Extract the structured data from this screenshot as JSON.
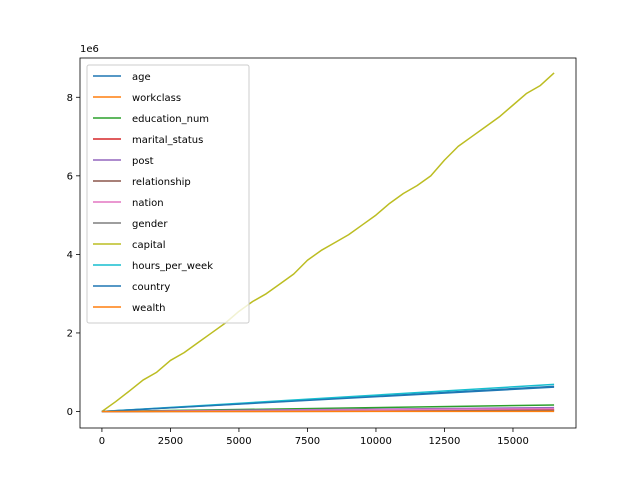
{
  "chart_data": {
    "type": "line",
    "title": "",
    "xlabel": "",
    "ylabel": "",
    "y_offset_label": "1e6",
    "y_scale": 1000000,
    "xlim": [
      -800,
      17300
    ],
    "ylim": [
      -420000,
      9000000
    ],
    "x_ticks": [
      0,
      2500,
      5000,
      7500,
      10000,
      12500,
      15000
    ],
    "x_tick_labels": [
      "0",
      "2500",
      "5000",
      "7500",
      "10000",
      "12500",
      "15000"
    ],
    "y_ticks": [
      0,
      2000000,
      4000000,
      6000000,
      8000000
    ],
    "y_tick_labels": [
      "0",
      "2",
      "4",
      "6",
      "8"
    ],
    "grid": false,
    "legend_position": "upper-left",
    "x_max": 16500,
    "series": [
      {
        "name": "age",
        "color": "#1f77b4",
        "end_value": 640000
      },
      {
        "name": "workclass",
        "color": "#ff7f0e",
        "end_value": 50000
      },
      {
        "name": "education_num",
        "color": "#2ca02c",
        "end_value": 165000
      },
      {
        "name": "marital_status",
        "color": "#d62728",
        "end_value": 40000
      },
      {
        "name": "post",
        "color": "#9467bd",
        "end_value": 100000
      },
      {
        "name": "relationship",
        "color": "#8c564b",
        "end_value": 25000
      },
      {
        "name": "nation",
        "color": "#e377c2",
        "end_value": 70000
      },
      {
        "name": "gender",
        "color": "#7f7f7f",
        "end_value": 11000
      },
      {
        "name": "capital",
        "color": "#bcbd22",
        "points": [
          [
            0,
            0
          ],
          [
            500,
            250000
          ],
          [
            1000,
            520000
          ],
          [
            1500,
            800000
          ],
          [
            2000,
            1000000
          ],
          [
            2500,
            1300000
          ],
          [
            3000,
            1500000
          ],
          [
            3500,
            1750000
          ],
          [
            4000,
            2000000
          ],
          [
            4500,
            2250000
          ],
          [
            5000,
            2550000
          ],
          [
            5500,
            2800000
          ],
          [
            6000,
            3000000
          ],
          [
            6500,
            3250000
          ],
          [
            7000,
            3500000
          ],
          [
            7500,
            3850000
          ],
          [
            8000,
            4100000
          ],
          [
            8500,
            4300000
          ],
          [
            9000,
            4500000
          ],
          [
            9500,
            4750000
          ],
          [
            10000,
            5000000
          ],
          [
            10500,
            5300000
          ],
          [
            11000,
            5550000
          ],
          [
            11500,
            5750000
          ],
          [
            12000,
            6000000
          ],
          [
            12500,
            6400000
          ],
          [
            13000,
            6750000
          ],
          [
            13500,
            7000000
          ],
          [
            14000,
            7250000
          ],
          [
            14500,
            7500000
          ],
          [
            15000,
            7800000
          ],
          [
            15500,
            8100000
          ],
          [
            16000,
            8300000
          ],
          [
            16500,
            8620000
          ]
        ]
      },
      {
        "name": "hours_per_week",
        "color": "#17becf",
        "end_value": 690000
      },
      {
        "name": "country",
        "color": "#1f77b4",
        "end_value": 620000
      },
      {
        "name": "wealth",
        "color": "#ff7f0e",
        "end_value": 3000
      }
    ]
  }
}
